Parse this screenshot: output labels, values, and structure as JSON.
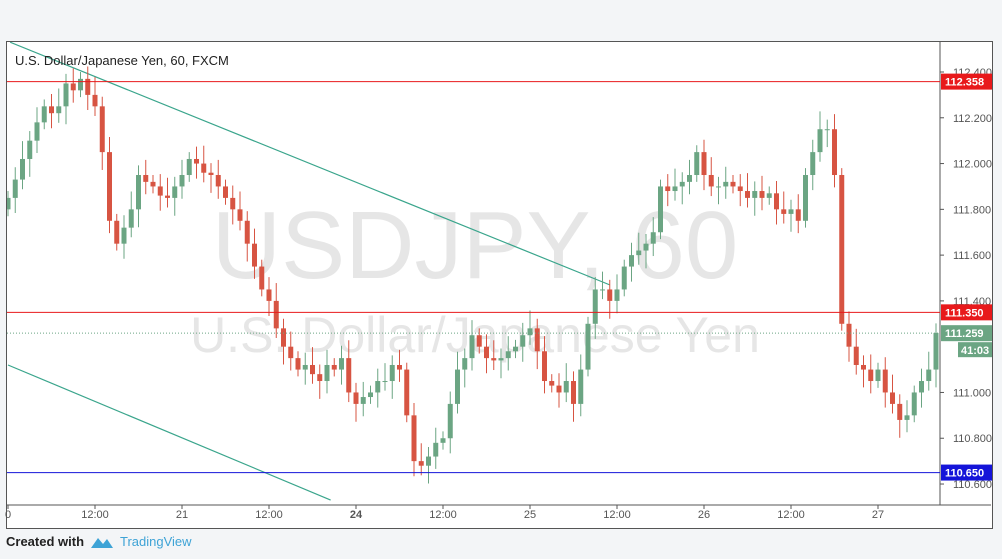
{
  "header": {
    "title": "U.S. Dollar/Japanese Yen, 60, FXCM"
  },
  "watermark": {
    "symbol": "USDJPY, 60",
    "name": "U.S. Dollar/Japanese Yen"
  },
  "footer": {
    "created": "Created with",
    "brand": "TradingView"
  },
  "colors": {
    "up": "#6ba583",
    "down": "#d75442",
    "resistance": "#e8191b",
    "support": "#1414d9",
    "trend": "#3aa58c",
    "current": "#6ba583"
  },
  "chart_data": {
    "type": "candlestick",
    "title": "U.S. Dollar/Japanese Yen, 60, FXCM",
    "ylim": [
      110.55,
      112.53
    ],
    "yticks": [
      "112.400",
      "112.200",
      "112.000",
      "111.800",
      "111.600",
      "111.400",
      "111.000",
      "110.800",
      "110.600"
    ],
    "xticks": [
      {
        "i": 0,
        "label": "0"
      },
      {
        "i": 12,
        "label": "12:00"
      },
      {
        "i": 24,
        "label": "21"
      },
      {
        "i": 36,
        "label": "12:00"
      },
      {
        "i": 48,
        "label": "24"
      },
      {
        "i": 60,
        "label": "12:00"
      },
      {
        "i": 72,
        "label": "25"
      },
      {
        "i": 84,
        "label": "12:00"
      },
      {
        "i": 96,
        "label": "26"
      },
      {
        "i": 108,
        "label": "12:00"
      },
      {
        "i": 120,
        "label": "27"
      }
    ],
    "first_open": 111.8,
    "closes": [
      111.85,
      111.93,
      112.02,
      112.1,
      112.18,
      112.25,
      112.22,
      112.25,
      112.35,
      112.32,
      112.37,
      112.3,
      112.25,
      112.05,
      111.75,
      111.65,
      111.72,
      111.8,
      111.95,
      111.92,
      111.9,
      111.86,
      111.85,
      111.9,
      111.95,
      112.02,
      112.0,
      111.96,
      111.95,
      111.9,
      111.85,
      111.8,
      111.75,
      111.65,
      111.55,
      111.45,
      111.4,
      111.28,
      111.2,
      111.15,
      111.1,
      111.12,
      111.08,
      111.05,
      111.12,
      111.1,
      111.15,
      111.0,
      110.95,
      110.98,
      111.0,
      111.05,
      111.05,
      111.12,
      111.1,
      110.9,
      110.7,
      110.68,
      110.72,
      110.78,
      110.8,
      110.95,
      111.1,
      111.15,
      111.25,
      111.2,
      111.15,
      111.14,
      111.15,
      111.18,
      111.2,
      111.25,
      111.28,
      111.18,
      111.05,
      111.03,
      111.0,
      111.05,
      110.95,
      111.1,
      111.3,
      111.45,
      111.45,
      111.4,
      111.45,
      111.55,
      111.6,
      111.62,
      111.65,
      111.7,
      111.9,
      111.88,
      111.9,
      111.92,
      111.95,
      112.05,
      111.95,
      111.9,
      111.9,
      111.92,
      111.9,
      111.88,
      111.85,
      111.88,
      111.85,
      111.87,
      111.8,
      111.78,
      111.8,
      111.75,
      111.95,
      112.05,
      112.15,
      112.15,
      111.95,
      111.3,
      111.2,
      111.12,
      111.1,
      111.05,
      111.1,
      111.0,
      110.95,
      110.88,
      110.9,
      111.0,
      111.05,
      111.1,
      111.26
    ],
    "levels": [
      {
        "price": 112.358,
        "label": "112.358",
        "color": "#e8191b"
      },
      {
        "price": 111.35,
        "label": "111.350",
        "color": "#e8191b"
      },
      {
        "price": 110.65,
        "label": "110.650",
        "color": "#1414d9"
      }
    ],
    "current": {
      "price": 111.259,
      "label": "111.259",
      "countdown": "41:03"
    },
    "trendlines": [
      {
        "from": [
          0.3,
          112.53
        ],
        "to": [
          83,
          111.47
        ]
      },
      {
        "from": [
          0,
          111.12
        ],
        "to": [
          44.5,
          110.53
        ]
      }
    ]
  }
}
